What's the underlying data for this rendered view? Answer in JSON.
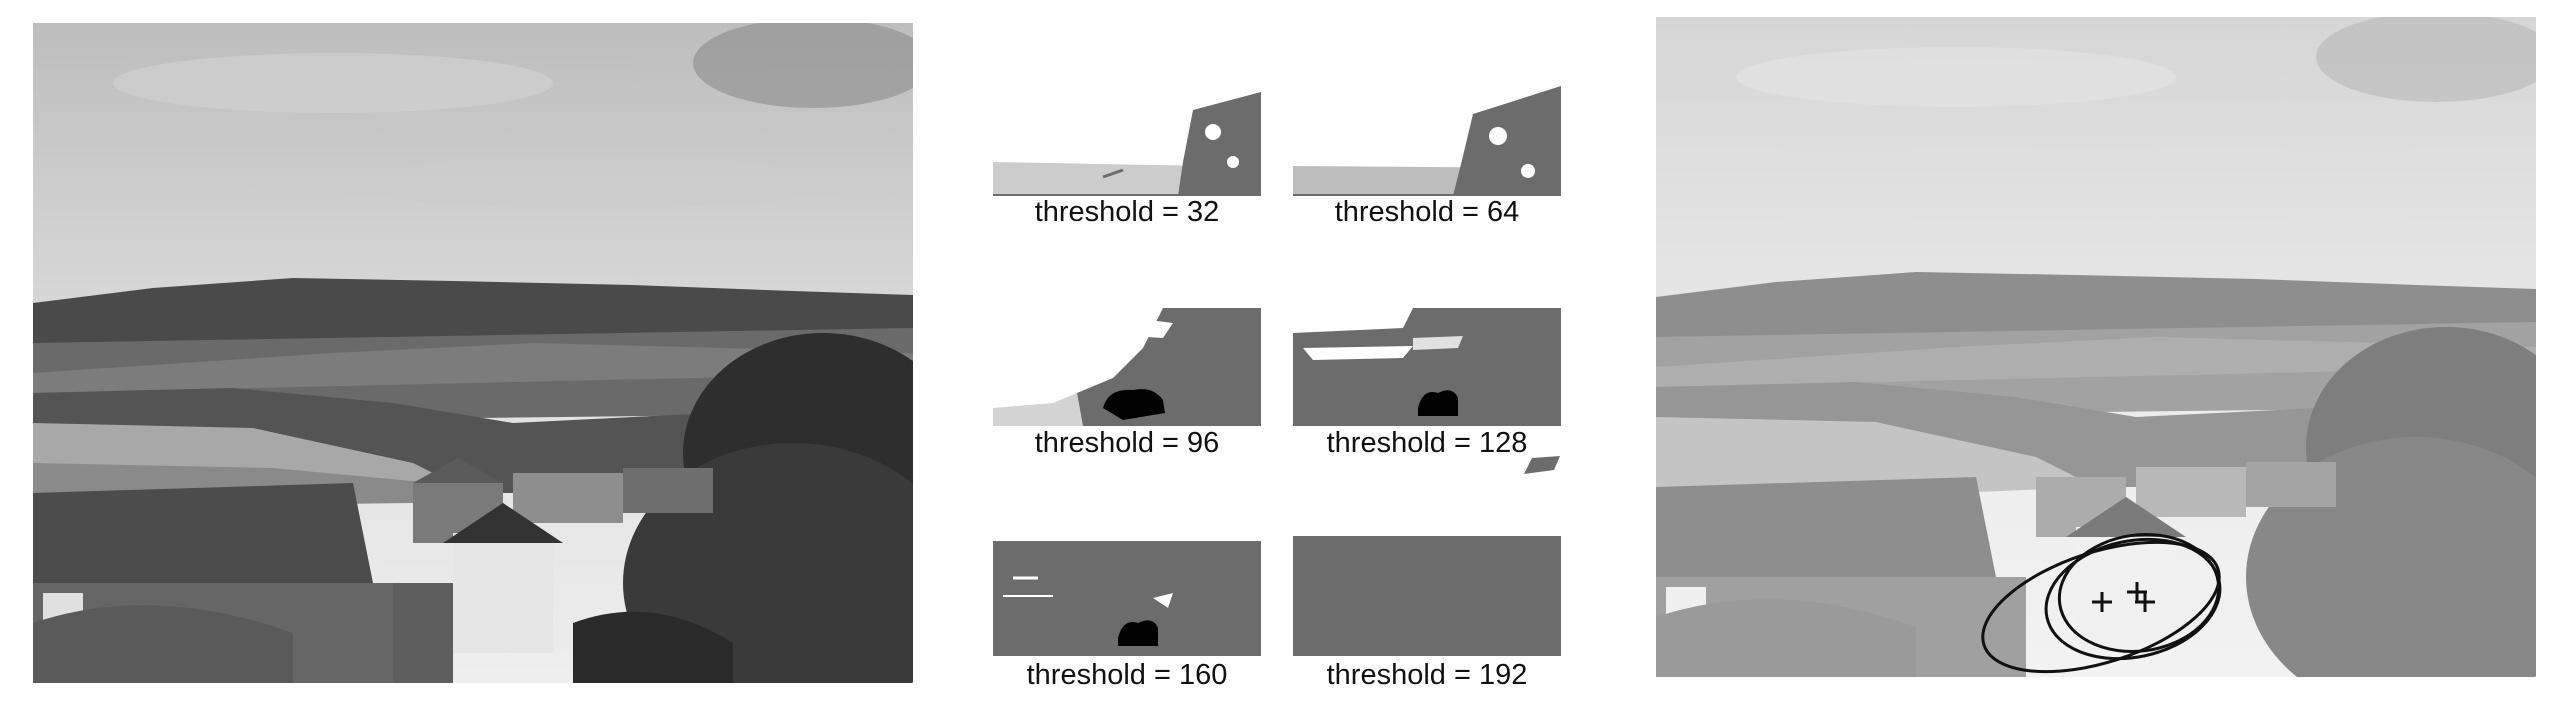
{
  "figure": {
    "threshold_panels": [
      {
        "label": "threshold = 32"
      },
      {
        "label": "threshold = 64"
      },
      {
        "label": "threshold = 96"
      },
      {
        "label": "threshold = 128"
      },
      {
        "label": "threshold = 160"
      },
      {
        "label": "threshold = 192"
      }
    ],
    "detections": {
      "ellipse_count": 3,
      "center_markers": 3,
      "marker_symbol": "+"
    }
  }
}
